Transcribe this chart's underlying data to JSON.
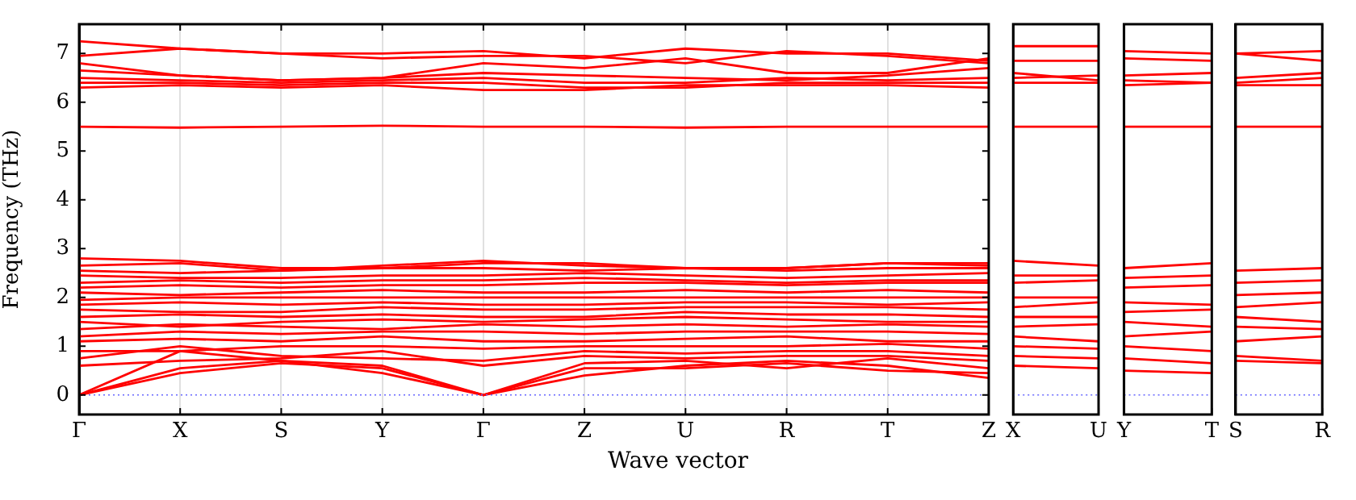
{
  "chart_data": [
    {
      "type": "line",
      "ylabel": "Frequency (THz)",
      "xlabel": "Wave vector",
      "grid": "x",
      "legend": false,
      "marker": "none",
      "line_style": "solid",
      "categories": [
        "Γ",
        "X",
        "S",
        "Y",
        "Γ",
        "Z",
        "U",
        "R",
        "T",
        "Z"
      ],
      "ylim": [
        -0.4,
        7.6
      ],
      "yticks": [
        0,
        1,
        2,
        3,
        4,
        5,
        6,
        7
      ],
      "ref_lines": [
        {
          "axis": "y",
          "value": 0,
          "color": "#6666ff",
          "line_style": "dotted"
        }
      ],
      "series": [
        {
          "color": "#ff0000",
          "values": [
            7.25,
            7.1,
            7.0,
            7.0,
            7.05,
            6.9,
            7.1,
            7.0,
            7.0,
            6.85
          ]
        },
        {
          "color": "#ff0000",
          "values": [
            6.95,
            7.1,
            7.0,
            6.9,
            6.95,
            6.95,
            6.8,
            7.05,
            6.95,
            6.8
          ]
        },
        {
          "color": "#ff0000",
          "values": [
            6.8,
            6.55,
            6.45,
            6.5,
            6.8,
            6.7,
            6.9,
            6.6,
            6.6,
            6.9
          ]
        },
        {
          "color": "#ff0000",
          "values": [
            6.65,
            6.55,
            6.45,
            6.5,
            6.6,
            6.55,
            6.5,
            6.45,
            6.55,
            6.7
          ]
        },
        {
          "color": "#ff0000",
          "values": [
            6.5,
            6.45,
            6.4,
            6.45,
            6.5,
            6.4,
            6.4,
            6.5,
            6.45,
            6.5
          ]
        },
        {
          "color": "#ff0000",
          "values": [
            6.4,
            6.4,
            6.35,
            6.4,
            6.4,
            6.3,
            6.3,
            6.4,
            6.4,
            6.4
          ]
        },
        {
          "color": "#ff0000",
          "values": [
            6.3,
            6.35,
            6.3,
            6.35,
            6.25,
            6.25,
            6.35,
            6.35,
            6.35,
            6.3
          ]
        },
        {
          "color": "#ff0000",
          "values": [
            5.5,
            5.48,
            5.5,
            5.52,
            5.5,
            5.5,
            5.48,
            5.5,
            5.5,
            5.5
          ]
        },
        {
          "color": "#ff0000",
          "values": [
            2.8,
            2.75,
            2.6,
            2.6,
            2.7,
            2.7,
            2.6,
            2.6,
            2.7,
            2.65
          ]
        },
        {
          "color": "#ff0000",
          "values": [
            2.65,
            2.7,
            2.55,
            2.65,
            2.75,
            2.65,
            2.6,
            2.6,
            2.7,
            2.7
          ]
        },
        {
          "color": "#ff0000",
          "values": [
            2.55,
            2.5,
            2.55,
            2.6,
            2.6,
            2.55,
            2.6,
            2.55,
            2.6,
            2.6
          ]
        },
        {
          "color": "#ff0000",
          "values": [
            2.45,
            2.4,
            2.4,
            2.45,
            2.45,
            2.5,
            2.45,
            2.4,
            2.45,
            2.5
          ]
        },
        {
          "color": "#ff0000",
          "values": [
            2.3,
            2.35,
            2.3,
            2.35,
            2.35,
            2.4,
            2.35,
            2.3,
            2.35,
            2.35
          ]
        },
        {
          "color": "#ff0000",
          "values": [
            2.2,
            2.25,
            2.2,
            2.25,
            2.25,
            2.3,
            2.3,
            2.25,
            2.3,
            2.3
          ]
        },
        {
          "color": "#ff0000",
          "values": [
            2.1,
            2.05,
            2.1,
            2.15,
            2.1,
            2.1,
            2.15,
            2.1,
            2.15,
            2.1
          ]
        },
        {
          "color": "#ff0000",
          "values": [
            1.95,
            2.0,
            2.0,
            2.0,
            2.0,
            2.0,
            2.0,
            2.0,
            2.0,
            2.0
          ]
        },
        {
          "color": "#ff0000",
          "values": [
            1.85,
            1.9,
            1.85,
            1.9,
            1.85,
            1.85,
            1.9,
            1.9,
            1.85,
            1.9
          ]
        },
        {
          "color": "#ff0000",
          "values": [
            1.75,
            1.7,
            1.7,
            1.8,
            1.75,
            1.75,
            1.8,
            1.8,
            1.8,
            1.75
          ]
        },
        {
          "color": "#ff0000",
          "values": [
            1.6,
            1.65,
            1.6,
            1.65,
            1.6,
            1.6,
            1.7,
            1.65,
            1.65,
            1.6
          ]
        },
        {
          "color": "#ff0000",
          "values": [
            1.5,
            1.4,
            1.5,
            1.55,
            1.5,
            1.55,
            1.6,
            1.55,
            1.5,
            1.5
          ]
        },
        {
          "color": "#ff0000",
          "values": [
            1.35,
            1.45,
            1.4,
            1.35,
            1.45,
            1.4,
            1.45,
            1.4,
            1.45,
            1.4
          ]
        },
        {
          "color": "#ff0000",
          "values": [
            1.2,
            1.3,
            1.25,
            1.3,
            1.3,
            1.25,
            1.3,
            1.3,
            1.3,
            1.25
          ]
        },
        {
          "color": "#ff0000",
          "values": [
            1.1,
            1.15,
            1.1,
            1.2,
            1.1,
            1.1,
            1.15,
            1.2,
            1.1,
            1.1
          ]
        },
        {
          "color": "#ff0000",
          "values": [
            0.9,
            0.9,
            1.0,
            1.0,
            0.95,
            1.0,
            1.0,
            1.0,
            1.05,
            0.95
          ]
        },
        {
          "color": "#ff0000",
          "values": [
            0.75,
            1.0,
            0.8,
            0.75,
            0.7,
            0.9,
            0.85,
            0.9,
            0.9,
            0.8
          ]
        },
        {
          "color": "#ff0000",
          "values": [
            0.6,
            0.7,
            0.75,
            0.9,
            0.6,
            0.8,
            0.75,
            0.8,
            0.8,
            0.7
          ]
        },
        {
          "color": "#ff0000",
          "values": [
            0,
            0.9,
            0.7,
            0.6,
            0,
            0.65,
            0.7,
            0.55,
            0.75,
            0.55
          ]
        },
        {
          "color": "#ff0000",
          "values": [
            0,
            0.45,
            0.65,
            0.55,
            0,
            0.55,
            0.55,
            0.65,
            0.5,
            0.45
          ]
        },
        {
          "color": "#ff0000",
          "values": [
            0,
            0.55,
            0.7,
            0.45,
            0,
            0.4,
            0.6,
            0.7,
            0.6,
            0.35
          ]
        }
      ]
    },
    {
      "type": "line",
      "legend": false,
      "marker": "none",
      "line_style": "solid",
      "tick_labels": "x",
      "categories": [
        "X",
        "U"
      ],
      "ylim": [
        -0.4,
        7.6
      ],
      "yticks": [
        0,
        1,
        2,
        3,
        4,
        5,
        6,
        7
      ],
      "ref_lines": [
        {
          "axis": "y",
          "value": 0,
          "color": "#6666ff",
          "line_style": "dotted"
        }
      ],
      "series": [
        {
          "color": "#ff0000",
          "values": [
            7.15,
            7.15
          ]
        },
        {
          "color": "#ff0000",
          "values": [
            6.85,
            6.85
          ]
        },
        {
          "color": "#ff0000",
          "values": [
            6.6,
            6.45
          ]
        },
        {
          "color": "#ff0000",
          "values": [
            6.5,
            6.55
          ]
        },
        {
          "color": "#ff0000",
          "values": [
            6.4,
            6.4
          ]
        },
        {
          "color": "#ff0000",
          "values": [
            5.5,
            5.5
          ]
        },
        {
          "color": "#ff0000",
          "values": [
            2.75,
            2.65
          ]
        },
        {
          "color": "#ff0000",
          "values": [
            2.45,
            2.45
          ]
        },
        {
          "color": "#ff0000",
          "values": [
            2.3,
            2.35
          ]
        },
        {
          "color": "#ff0000",
          "values": [
            2.0,
            2.0
          ]
        },
        {
          "color": "#ff0000",
          "values": [
            1.8,
            1.9
          ]
        },
        {
          "color": "#ff0000",
          "values": [
            1.6,
            1.6
          ]
        },
        {
          "color": "#ff0000",
          "values": [
            1.4,
            1.45
          ]
        },
        {
          "color": "#ff0000",
          "values": [
            1.2,
            1.1
          ]
        },
        {
          "color": "#ff0000",
          "values": [
            1.0,
            0.95
          ]
        },
        {
          "color": "#ff0000",
          "values": [
            0.8,
            0.75
          ]
        },
        {
          "color": "#ff0000",
          "values": [
            0.6,
            0.55
          ]
        }
      ]
    },
    {
      "type": "line",
      "legend": false,
      "marker": "none",
      "line_style": "solid",
      "tick_labels": "x",
      "categories": [
        "Y",
        "T"
      ],
      "ylim": [
        -0.4,
        7.6
      ],
      "yticks": [
        0,
        1,
        2,
        3,
        4,
        5,
        6,
        7
      ],
      "ref_lines": [
        {
          "axis": "y",
          "value": 0,
          "color": "#6666ff",
          "line_style": "dotted"
        }
      ],
      "series": [
        {
          "color": "#ff0000",
          "values": [
            7.05,
            7.0
          ]
        },
        {
          "color": "#ff0000",
          "values": [
            6.9,
            6.85
          ]
        },
        {
          "color": "#ff0000",
          "values": [
            6.55,
            6.6
          ]
        },
        {
          "color": "#ff0000",
          "values": [
            6.45,
            6.4
          ]
        },
        {
          "color": "#ff0000",
          "values": [
            6.35,
            6.4
          ]
        },
        {
          "color": "#ff0000",
          "values": [
            5.5,
            5.5
          ]
        },
        {
          "color": "#ff0000",
          "values": [
            2.6,
            2.7
          ]
        },
        {
          "color": "#ff0000",
          "values": [
            2.4,
            2.45
          ]
        },
        {
          "color": "#ff0000",
          "values": [
            2.2,
            2.25
          ]
        },
        {
          "color": "#ff0000",
          "values": [
            1.9,
            1.85
          ]
        },
        {
          "color": "#ff0000",
          "values": [
            1.7,
            1.75
          ]
        },
        {
          "color": "#ff0000",
          "values": [
            1.5,
            1.4
          ]
        },
        {
          "color": "#ff0000",
          "values": [
            1.2,
            1.3
          ]
        },
        {
          "color": "#ff0000",
          "values": [
            1.0,
            0.9
          ]
        },
        {
          "color": "#ff0000",
          "values": [
            0.75,
            0.65
          ]
        },
        {
          "color": "#ff0000",
          "values": [
            0.5,
            0.45
          ]
        }
      ]
    },
    {
      "type": "line",
      "legend": false,
      "marker": "none",
      "line_style": "solid",
      "tick_labels": "x",
      "categories": [
        "S",
        "R"
      ],
      "ylim": [
        -0.4,
        7.6
      ],
      "yticks": [
        0,
        1,
        2,
        3,
        4,
        5,
        6,
        7
      ],
      "ref_lines": [
        {
          "axis": "y",
          "value": 0,
          "color": "#6666ff",
          "line_style": "dotted"
        }
      ],
      "series": [
        {
          "color": "#ff0000",
          "values": [
            7.0,
            7.05
          ]
        },
        {
          "color": "#ff0000",
          "values": [
            7.0,
            6.85
          ]
        },
        {
          "color": "#ff0000",
          "values": [
            6.5,
            6.6
          ]
        },
        {
          "color": "#ff0000",
          "values": [
            6.4,
            6.5
          ]
        },
        {
          "color": "#ff0000",
          "values": [
            6.35,
            6.35
          ]
        },
        {
          "color": "#ff0000",
          "values": [
            5.5,
            5.5
          ]
        },
        {
          "color": "#ff0000",
          "values": [
            2.55,
            2.6
          ]
        },
        {
          "color": "#ff0000",
          "values": [
            2.3,
            2.35
          ]
        },
        {
          "color": "#ff0000",
          "values": [
            2.05,
            2.1
          ]
        },
        {
          "color": "#ff0000",
          "values": [
            1.8,
            1.9
          ]
        },
        {
          "color": "#ff0000",
          "values": [
            1.6,
            1.5
          ]
        },
        {
          "color": "#ff0000",
          "values": [
            1.4,
            1.35
          ]
        },
        {
          "color": "#ff0000",
          "values": [
            1.1,
            1.2
          ]
        },
        {
          "color": "#ff0000",
          "values": [
            0.8,
            0.7
          ]
        },
        {
          "color": "#ff0000",
          "values": [
            0.7,
            0.65
          ]
        }
      ]
    }
  ]
}
